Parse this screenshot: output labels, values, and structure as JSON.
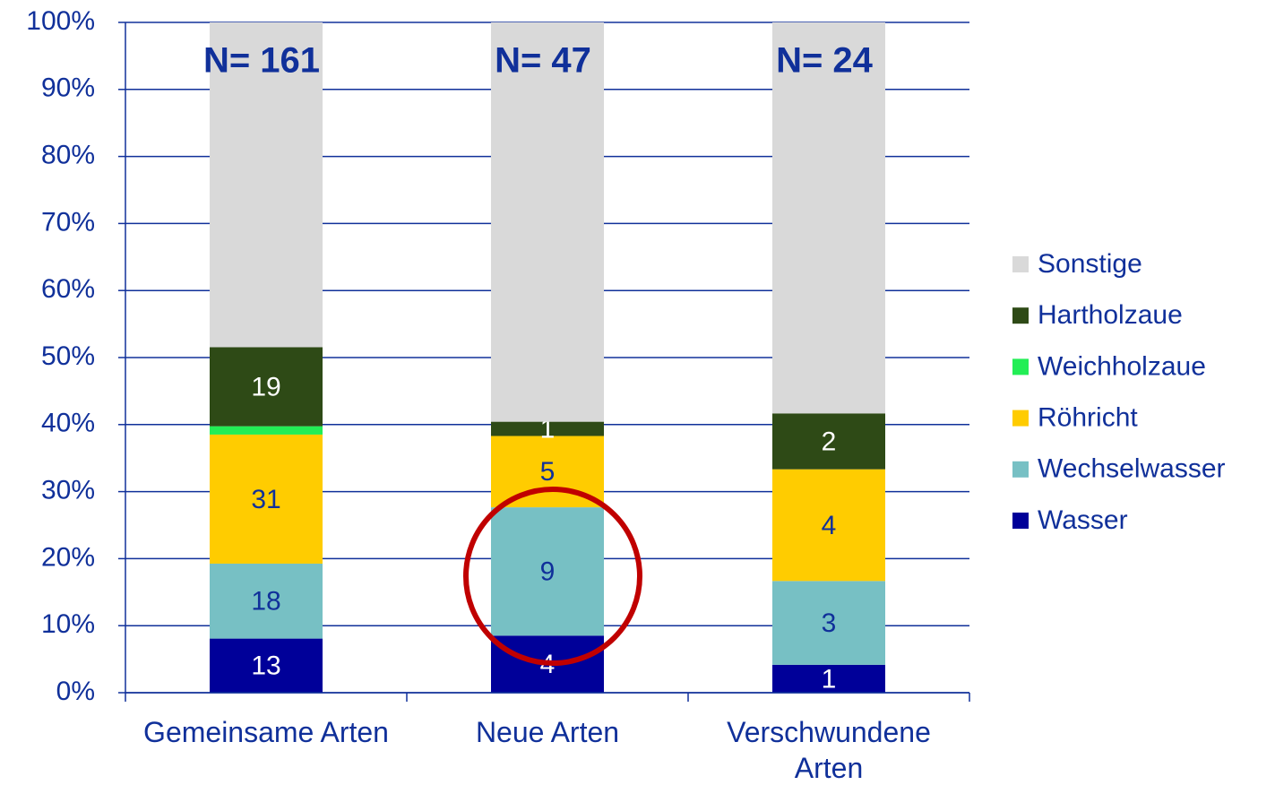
{
  "chart_data": {
    "type": "bar",
    "stacking": "percent",
    "categories": [
      "Gemeinsame Arten",
      "Neue Arten",
      "Verschwundene Arten"
    ],
    "annotations": [
      "N= 161",
      "N= 47",
      "N= 24"
    ],
    "series": [
      {
        "name": "Wasser",
        "color": "#000099",
        "label_color": "#ffffff",
        "values": [
          13,
          4,
          1
        ]
      },
      {
        "name": "Wechselwasser",
        "color": "#77c0c4",
        "label_color": "#10309a",
        "values": [
          18,
          9,
          3
        ]
      },
      {
        "name": "Röhricht",
        "color": "#ffcc00",
        "label_color": "#10309a",
        "values": [
          31,
          5,
          4
        ]
      },
      {
        "name": "Weichholzaue",
        "color": "#22ee55",
        "values": [
          2,
          0,
          0
        ],
        "value_labels": [
          null,
          null,
          null
        ]
      },
      {
        "name": "Hartholzaue",
        "color": "#2e4a16",
        "label_color": "#ffffff",
        "values": [
          19,
          1,
          2
        ]
      },
      {
        "name": "Sonstige",
        "color": "#d9d9d9",
        "values": [
          78,
          28,
          14
        ],
        "value_labels": [
          null,
          null,
          null
        ]
      }
    ],
    "ylim": [
      0,
      100
    ],
    "yticks": [
      {
        "value": 0,
        "label": "0%"
      },
      {
        "value": 10,
        "label": "10%"
      },
      {
        "value": 20,
        "label": "20%"
      },
      {
        "value": 30,
        "label": "30%"
      },
      {
        "value": 40,
        "label": "40%"
      },
      {
        "value": 50,
        "label": "50%"
      },
      {
        "value": 60,
        "label": "60%"
      },
      {
        "value": 70,
        "label": "70%"
      },
      {
        "value": 80,
        "label": "80%"
      },
      {
        "value": 90,
        "label": "90%"
      },
      {
        "value": 100,
        "label": "100%"
      }
    ],
    "grid": true,
    "legend": "right"
  }
}
